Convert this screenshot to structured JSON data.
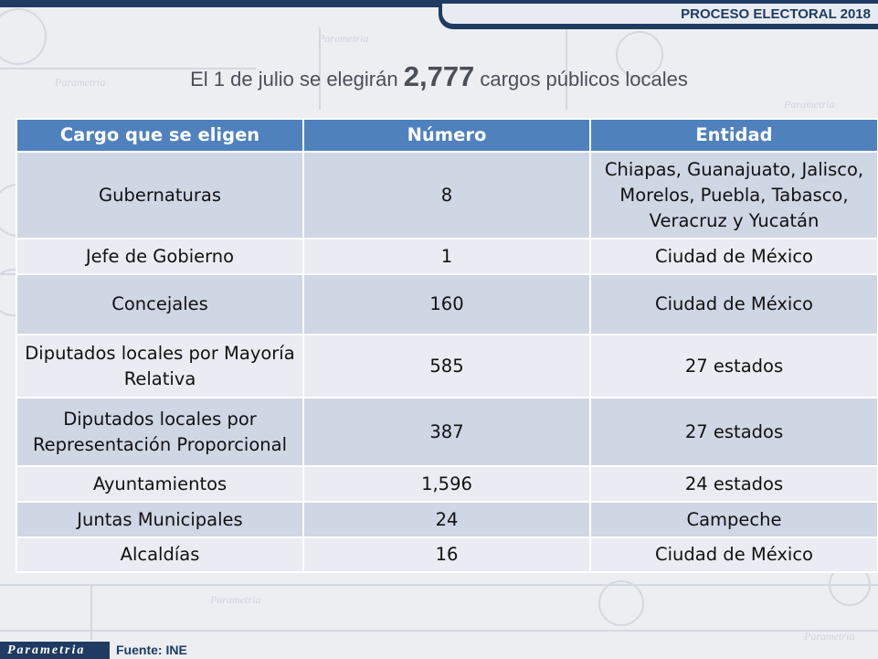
{
  "header": {
    "label": "PROCESO ELECTORAL 2018"
  },
  "headline": {
    "before": "El 1 de julio se elegirán ",
    "number": "2,777",
    "after": " cargos públicos locales"
  },
  "table": {
    "headers": [
      "Cargo que se eligen",
      "Número",
      "Entidad"
    ],
    "rows": [
      {
        "cargo": "Gubernaturas",
        "numero": "8",
        "entidad": "Chiapas, Guanajuato, Jalisco, Morelos, Puebla, Tabasco, Veracruz y Yucatán"
      },
      {
        "cargo": "Jefe de Gobierno",
        "numero": "1",
        "entidad": "Ciudad de México"
      },
      {
        "cargo": "Concejales",
        "numero": "160",
        "entidad": "Ciudad de México"
      },
      {
        "cargo": "Diputados locales por Mayoría Relativa",
        "numero": "585",
        "entidad": "27 estados"
      },
      {
        "cargo": "Diputados locales por Representación Proporcional",
        "numero": "387",
        "entidad": "27 estados"
      },
      {
        "cargo": "Ayuntamientos",
        "numero": "1,596",
        "entidad": "24 estados"
      },
      {
        "cargo": "Juntas Municipales",
        "numero": "24",
        "entidad": "Campeche"
      },
      {
        "cargo": "Alcaldías",
        "numero": "16",
        "entidad": "Ciudad de México"
      }
    ]
  },
  "watermark": {
    "text": "Parametria"
  },
  "footer": {
    "logo": "Parametria",
    "source": "Fuente: INE"
  },
  "colors": {
    "header_navy": "#1f3b62",
    "table_header_blue": "#4f81bd",
    "row_dark": "#cfd6e4",
    "row_light": "#e9ecf2"
  }
}
